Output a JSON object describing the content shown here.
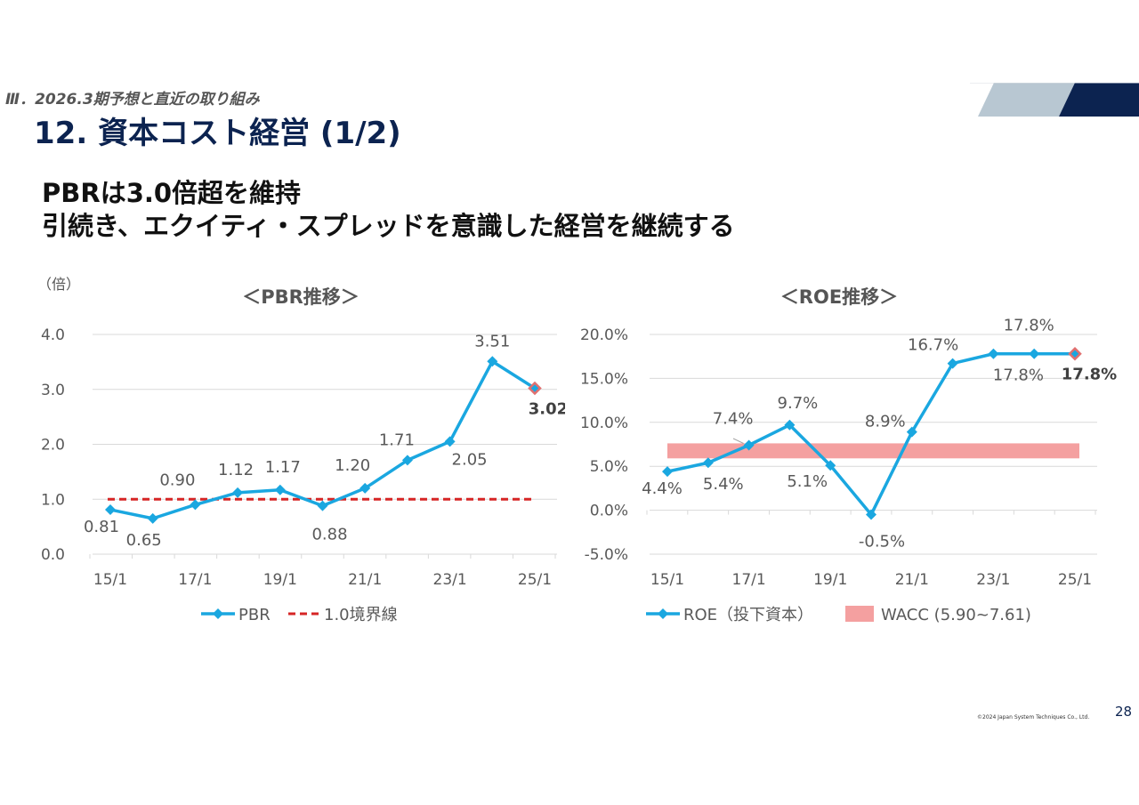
{
  "header": {
    "section": "Ⅲ．2026.3期予想と直近の取り組み",
    "title": "12. 資本コスト経営 (1/2)"
  },
  "headline": {
    "line1": "PBRは3.0倍超を維持",
    "line2": "引続き、エクイティ・スプレッドを意識した経営を継続する"
  },
  "colors": {
    "series": "#1aa7e0",
    "threshold": "#d62525",
    "band": "#f4a0a0",
    "highlight": "#e07070",
    "navy": "#0c2350",
    "steel": "#b8c7d2"
  },
  "chart_data": [
    {
      "type": "line",
      "title": "＜PBR推移＞",
      "unit_label": "（倍）",
      "categories": [
        "15/1",
        "16/1",
        "17/1",
        "18/1",
        "19/1",
        "20/1",
        "21/1",
        "22/1",
        "23/1",
        "24/1",
        "25/1"
      ],
      "x_tick_labels": [
        "15/1",
        "",
        "17/1",
        "",
        "19/1",
        "",
        "21/1",
        "",
        "23/1",
        "",
        "25/1"
      ],
      "series": [
        {
          "name": "PBR",
          "values": [
            0.81,
            0.65,
            0.9,
            1.12,
            1.17,
            0.88,
            1.2,
            1.71,
            2.05,
            3.51,
            3.02
          ]
        }
      ],
      "data_labels": [
        "0.81",
        "0.65",
        "0.90",
        "1.12",
        "1.17",
        "0.88",
        "1.20",
        "1.71",
        "2.05",
        "3.51",
        "3.02"
      ],
      "reference_line": {
        "name": "1.0境界線",
        "value": 1.0
      },
      "ylim": [
        0,
        4
      ],
      "y_tick_values": [
        0,
        1,
        2,
        3,
        4
      ],
      "y_tick_labels": [
        "0.0",
        "1.0",
        "2.0",
        "3.0",
        "4.0"
      ],
      "legend": [
        "PBR",
        "1.0境界線"
      ],
      "legend_position": "bottom"
    },
    {
      "type": "line",
      "title": "＜ROE推移＞",
      "categories": [
        "15/1",
        "16/1",
        "17/1",
        "18/1",
        "19/1",
        "20/1",
        "21/1",
        "22/1",
        "23/1",
        "24/1",
        "25/1"
      ],
      "x_tick_labels": [
        "15/1",
        "",
        "17/1",
        "",
        "19/1",
        "",
        "21/1",
        "",
        "23/1",
        "",
        "25/1"
      ],
      "series": [
        {
          "name": "ROE（投下資本）",
          "values": [
            4.4,
            5.4,
            7.4,
            9.7,
            5.1,
            -0.5,
            8.9,
            16.7,
            17.8,
            17.8,
            17.8
          ]
        }
      ],
      "data_labels": [
        "4.4%",
        "5.4%",
        "7.4%",
        "9.7%",
        "5.1%",
        "-0.5%",
        "8.9%",
        "16.7%",
        "17.8%",
        "17.8%",
        "17.8%"
      ],
      "band": {
        "name": "WACC (5.90~7.61)",
        "from": 5.9,
        "to": 7.61
      },
      "ylim": [
        -5,
        20
      ],
      "y_tick_values": [
        -5,
        0,
        5,
        10,
        15,
        20
      ],
      "y_tick_labels": [
        "-5.0%",
        "0.0%",
        "5.0%",
        "10.0%",
        "15.0%",
        "20.0%"
      ],
      "legend": [
        "ROE（投下資本）",
        "WACC (5.90~7.61)"
      ],
      "legend_position": "bottom"
    }
  ],
  "footer": {
    "copyright": "©2024 Japan System Techniques Co., Ltd.",
    "page_number": "28"
  }
}
